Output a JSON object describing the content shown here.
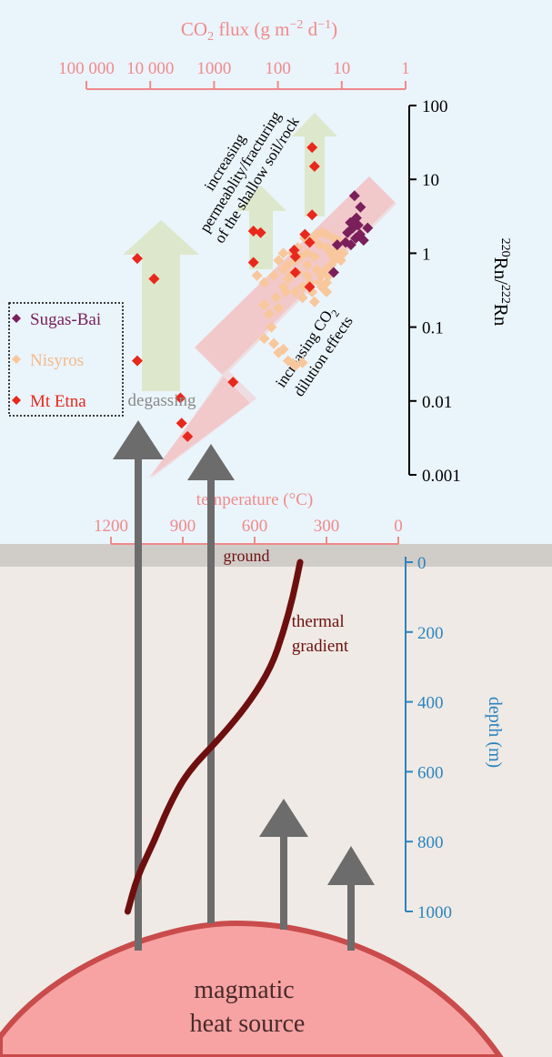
{
  "top_axis": {
    "title_pre": "CO",
    "title_sub": "2",
    "title_post": " flux (g m",
    "title_sup1": "−2",
    "title_mid": " d",
    "title_sup2": "−1",
    "title_end": ")",
    "tick_labels": [
      "100 000",
      "10 000",
      "1000",
      "100",
      "10",
      "1"
    ]
  },
  "right_axis": {
    "label_sup1": "220",
    "label_a": "Rn/",
    "label_sup2": "222",
    "label_b": "Rn",
    "tick_labels": [
      "100",
      "10",
      "1",
      "0.1",
      "0.01",
      "0.001"
    ]
  },
  "temp_axis": {
    "title": "temperature (°C)",
    "tick_labels": [
      "1200",
      "900",
      "600",
      "300",
      "0"
    ]
  },
  "depth_axis": {
    "title": "depth (m)",
    "tick_labels": [
      "0",
      "200",
      "400",
      "600",
      "800",
      "1000"
    ]
  },
  "legend": [
    {
      "label": "Sugas-Bai",
      "color": "#7a1f5c"
    },
    {
      "label": "Nisyros",
      "color": "#f8c79c"
    },
    {
      "label": "Mt Etna",
      "color": "#e8281c"
    }
  ],
  "annotations": {
    "permeability": [
      "increasing",
      "permeablity/fracturing",
      "of the shallow soil/rock"
    ],
    "dilution_line1_pre": "increasing CO",
    "dilution_line1_sub": "2",
    "dilution_line2": "dilution effects",
    "ground": "ground",
    "thermal": [
      "thermal",
      "gradient"
    ],
    "degassing": "degassing",
    "magma": [
      "magmatic",
      "heat source"
    ]
  },
  "colors": {
    "top_bg": "#eaf4fb",
    "bottom_bg": "#efeae5",
    "ground": "#d0ccc8",
    "salmon": "#f08a8a",
    "depth_blue": "#2b84bf",
    "gradient": "#6e0f0f",
    "magma": "#f7a3a3",
    "magma_edge": "#c94b4b",
    "arrow_grey": "#6c6c6c",
    "green_arrow": "#dde7cb",
    "pink_arrow": "#f2c6c6"
  },
  "chart_data": {
    "type": "scatter",
    "ylabel": "220Rn/222Rn",
    "yscale": "log",
    "ylim": [
      0.001,
      100
    ],
    "xlim_temperature": [
      1200,
      0
    ],
    "xlim_co2_flux": [
      100000,
      1
    ],
    "series": [
      {
        "name": "Sugas-Bai",
        "color": "#7a1f5c",
        "points": [
          [
            183,
            6.0
          ],
          [
            158,
            4.2
          ],
          [
            175,
            3.0
          ],
          [
            200,
            2.6
          ],
          [
            168,
            2.4
          ],
          [
            190,
            2.2
          ],
          [
            128,
            2.2
          ],
          [
            212,
            1.9
          ],
          [
            160,
            1.8
          ],
          [
            178,
            1.6
          ],
          [
            220,
            1.4
          ],
          [
            198,
            1.3
          ],
          [
            145,
            1.5
          ],
          [
            255,
            1.3
          ],
          [
            270,
            0.55
          ]
        ]
      },
      {
        "name": "Nisyros",
        "color": "#f8c79c",
        "points": [
          [
            480,
            0.05
          ],
          [
            460,
            0.035
          ],
          [
            440,
            0.032
          ],
          [
            430,
            0.03
          ],
          [
            400,
            0.033
          ],
          [
            520,
            0.06
          ],
          [
            500,
            0.045
          ],
          [
            560,
            0.07
          ],
          [
            530,
            0.1
          ],
          [
            540,
            0.15
          ],
          [
            500,
            0.18
          ],
          [
            560,
            0.2
          ],
          [
            510,
            0.25
          ],
          [
            470,
            0.3
          ],
          [
            480,
            0.35
          ],
          [
            560,
            0.4
          ],
          [
            590,
            0.5
          ],
          [
            460,
            0.45
          ],
          [
            430,
            0.3
          ],
          [
            400,
            0.25
          ],
          [
            400,
            0.35
          ],
          [
            370,
            0.4
          ],
          [
            360,
            0.3
          ],
          [
            350,
            0.22
          ],
          [
            330,
            0.4
          ],
          [
            320,
            0.5
          ],
          [
            300,
            0.6
          ],
          [
            300,
            0.4
          ],
          [
            320,
            0.35
          ],
          [
            280,
            0.7
          ],
          [
            290,
            0.5
          ],
          [
            270,
            0.9
          ],
          [
            350,
            0.9
          ],
          [
            380,
            1.0
          ],
          [
            410,
            0.9
          ],
          [
            430,
            0.8
          ],
          [
            460,
            0.7
          ],
          [
            480,
            0.6
          ],
          [
            380,
            0.7
          ],
          [
            330,
            1.3
          ],
          [
            300,
            1.2
          ],
          [
            360,
            1.5
          ],
          [
            280,
            1.0
          ],
          [
            260,
            1.1
          ],
          [
            300,
            1.8
          ],
          [
            340,
            1.8
          ],
          [
            390,
            1.6
          ],
          [
            420,
            1.2
          ],
          [
            440,
            1.0
          ],
          [
            500,
            0.8
          ],
          [
            480,
            1.0
          ],
          [
            520,
            0.5
          ],
          [
            380,
            0.5
          ],
          [
            450,
            0.5
          ],
          [
            420,
            0.55
          ],
          [
            250,
            1.5
          ],
          [
            230,
            1.0
          ],
          [
            340,
            0.6
          ],
          [
            300,
            0.3
          ],
          [
            260,
            0.85
          ],
          [
            240,
            0.8
          ],
          [
            270,
            1.6
          ],
          [
            320,
            1.9
          ]
        ]
      },
      {
        "name": "Mt Etna",
        "color": "#e8281c",
        "points": [
          [
            1090,
            0.85
          ],
          [
            1020,
            0.45
          ],
          [
            1090,
            0.035
          ],
          [
            910,
            0.011
          ],
          [
            905,
            0.005
          ],
          [
            880,
            0.0033
          ],
          [
            690,
            0.018
          ],
          [
            605,
            2.0
          ],
          [
            575,
            1.9
          ],
          [
            605,
            0.75
          ],
          [
            435,
            1.1
          ],
          [
            430,
            0.9
          ],
          [
            390,
            1.8
          ],
          [
            370,
            1.4
          ],
          [
            430,
            0.55
          ],
          [
            370,
            0.35
          ],
          [
            360,
            27
          ],
          [
            350,
            15
          ],
          [
            360,
            3.3
          ]
        ]
      }
    ],
    "depth_curve_temp_c": [
      [
        410,
        0
      ],
      [
        440,
        100
      ],
      [
        480,
        200
      ],
      [
        530,
        300
      ],
      [
        620,
        400
      ],
      [
        740,
        500
      ],
      [
        880,
        600
      ],
      [
        960,
        700
      ],
      [
        1020,
        800
      ],
      [
        1090,
        900
      ],
      [
        1130,
        1000
      ]
    ]
  }
}
